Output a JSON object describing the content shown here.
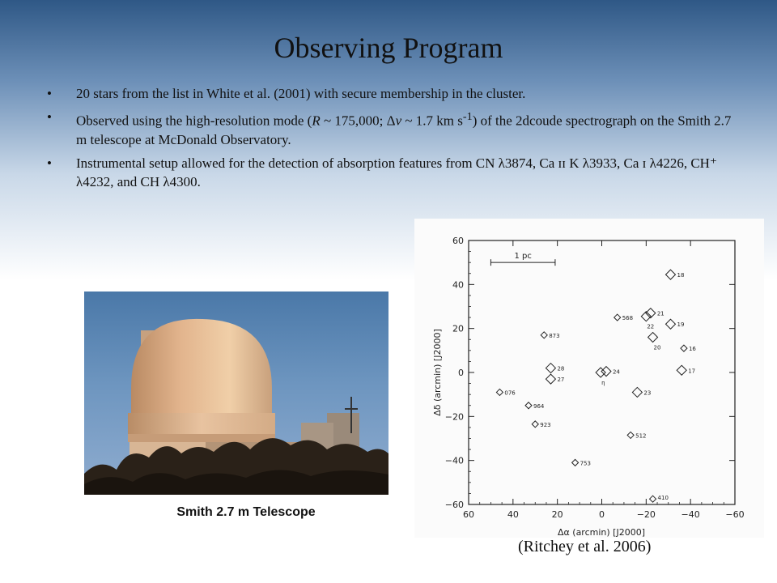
{
  "slide": {
    "title": "Observing Program",
    "bullets": [
      {
        "text": "20 stars from the list in White et al. (2001) with secure membership in the cluster."
      },
      {
        "pre": "Observed using the high-resolution mode (",
        "r": "R",
        "mid1": " ~ 175,000; Δ",
        "v": "v",
        "mid2": " ~ 1.7 km s",
        "sup": "-1",
        "post": ") of the 2dcoude spectrograph on the Smith 2.7 m telescope at McDonald Observatory."
      },
      {
        "text": "Instrumental setup allowed for the detection of absorption features from CN λ3874, Ca ɪɪ K λ3933, Ca ɪ λ4226, CH⁺ λ4232, and CH λ4300."
      }
    ],
    "photo_caption": "Smith 2.7 m Telescope",
    "credit": "(Ritchey et al. 2006)"
  },
  "chart_data": {
    "type": "scatter",
    "title": "",
    "xlabel": "Δα (arcmin) [J2000]",
    "ylabel": "Δδ (arcmin) [J2000]",
    "xlim": [
      60,
      -60
    ],
    "ylim": [
      -60,
      60
    ],
    "x_ticks": [
      60,
      40,
      20,
      0,
      -20,
      -40,
      -60
    ],
    "x_tick_labels": [
      "60",
      "40",
      "20",
      "0",
      "−20",
      "−40",
      "−60"
    ],
    "y_ticks": [
      60,
      40,
      20,
      0,
      -20,
      -40,
      -60
    ],
    "y_tick_labels": [
      "60",
      "40",
      "20",
      "0",
      "−20",
      "−40",
      "−60"
    ],
    "grid": false,
    "scale_bar": {
      "label": "1 pc",
      "x_start": 50,
      "x_end": 21,
      "y": 50
    },
    "points": [
      {
        "label": "18",
        "x": -31,
        "y": 44.5,
        "size": "large"
      },
      {
        "label": "21",
        "x": -22,
        "y": 27,
        "size": "large"
      },
      {
        "label": "22",
        "x": -20,
        "y": 25.5,
        "size": "large"
      },
      {
        "label": "19",
        "x": -31,
        "y": 22,
        "size": "large"
      },
      {
        "label": "20",
        "x": -23,
        "y": 16,
        "size": "large"
      },
      {
        "label": "16",
        "x": -37,
        "y": 11,
        "size": "small"
      },
      {
        "label": "17",
        "x": -36,
        "y": 1,
        "size": "large"
      },
      {
        "label": "568",
        "x": -7,
        "y": 25,
        "size": "small"
      },
      {
        "label": "873",
        "x": 26,
        "y": 17,
        "size": "small"
      },
      {
        "label": "28",
        "x": 23,
        "y": 2,
        "size": "large"
      },
      {
        "label": "27",
        "x": 23,
        "y": -3,
        "size": "large"
      },
      {
        "label": "24",
        "x": -2,
        "y": 0.5,
        "size": "large"
      },
      {
        "label": "η",
        "x": 0.5,
        "y": 0,
        "size": "large"
      },
      {
        "label": "076",
        "x": 46,
        "y": -9,
        "size": "small"
      },
      {
        "label": "964",
        "x": 33,
        "y": -15,
        "size": "small"
      },
      {
        "label": "923",
        "x": 30,
        "y": -23.5,
        "size": "small"
      },
      {
        "label": "23",
        "x": -16,
        "y": -9,
        "size": "large"
      },
      {
        "label": "512",
        "x": -13,
        "y": -28.5,
        "size": "small"
      },
      {
        "label": "753",
        "x": 12,
        "y": -41,
        "size": "small"
      },
      {
        "label": "410",
        "x": -23,
        "y": -57.5,
        "size": "small"
      }
    ]
  }
}
